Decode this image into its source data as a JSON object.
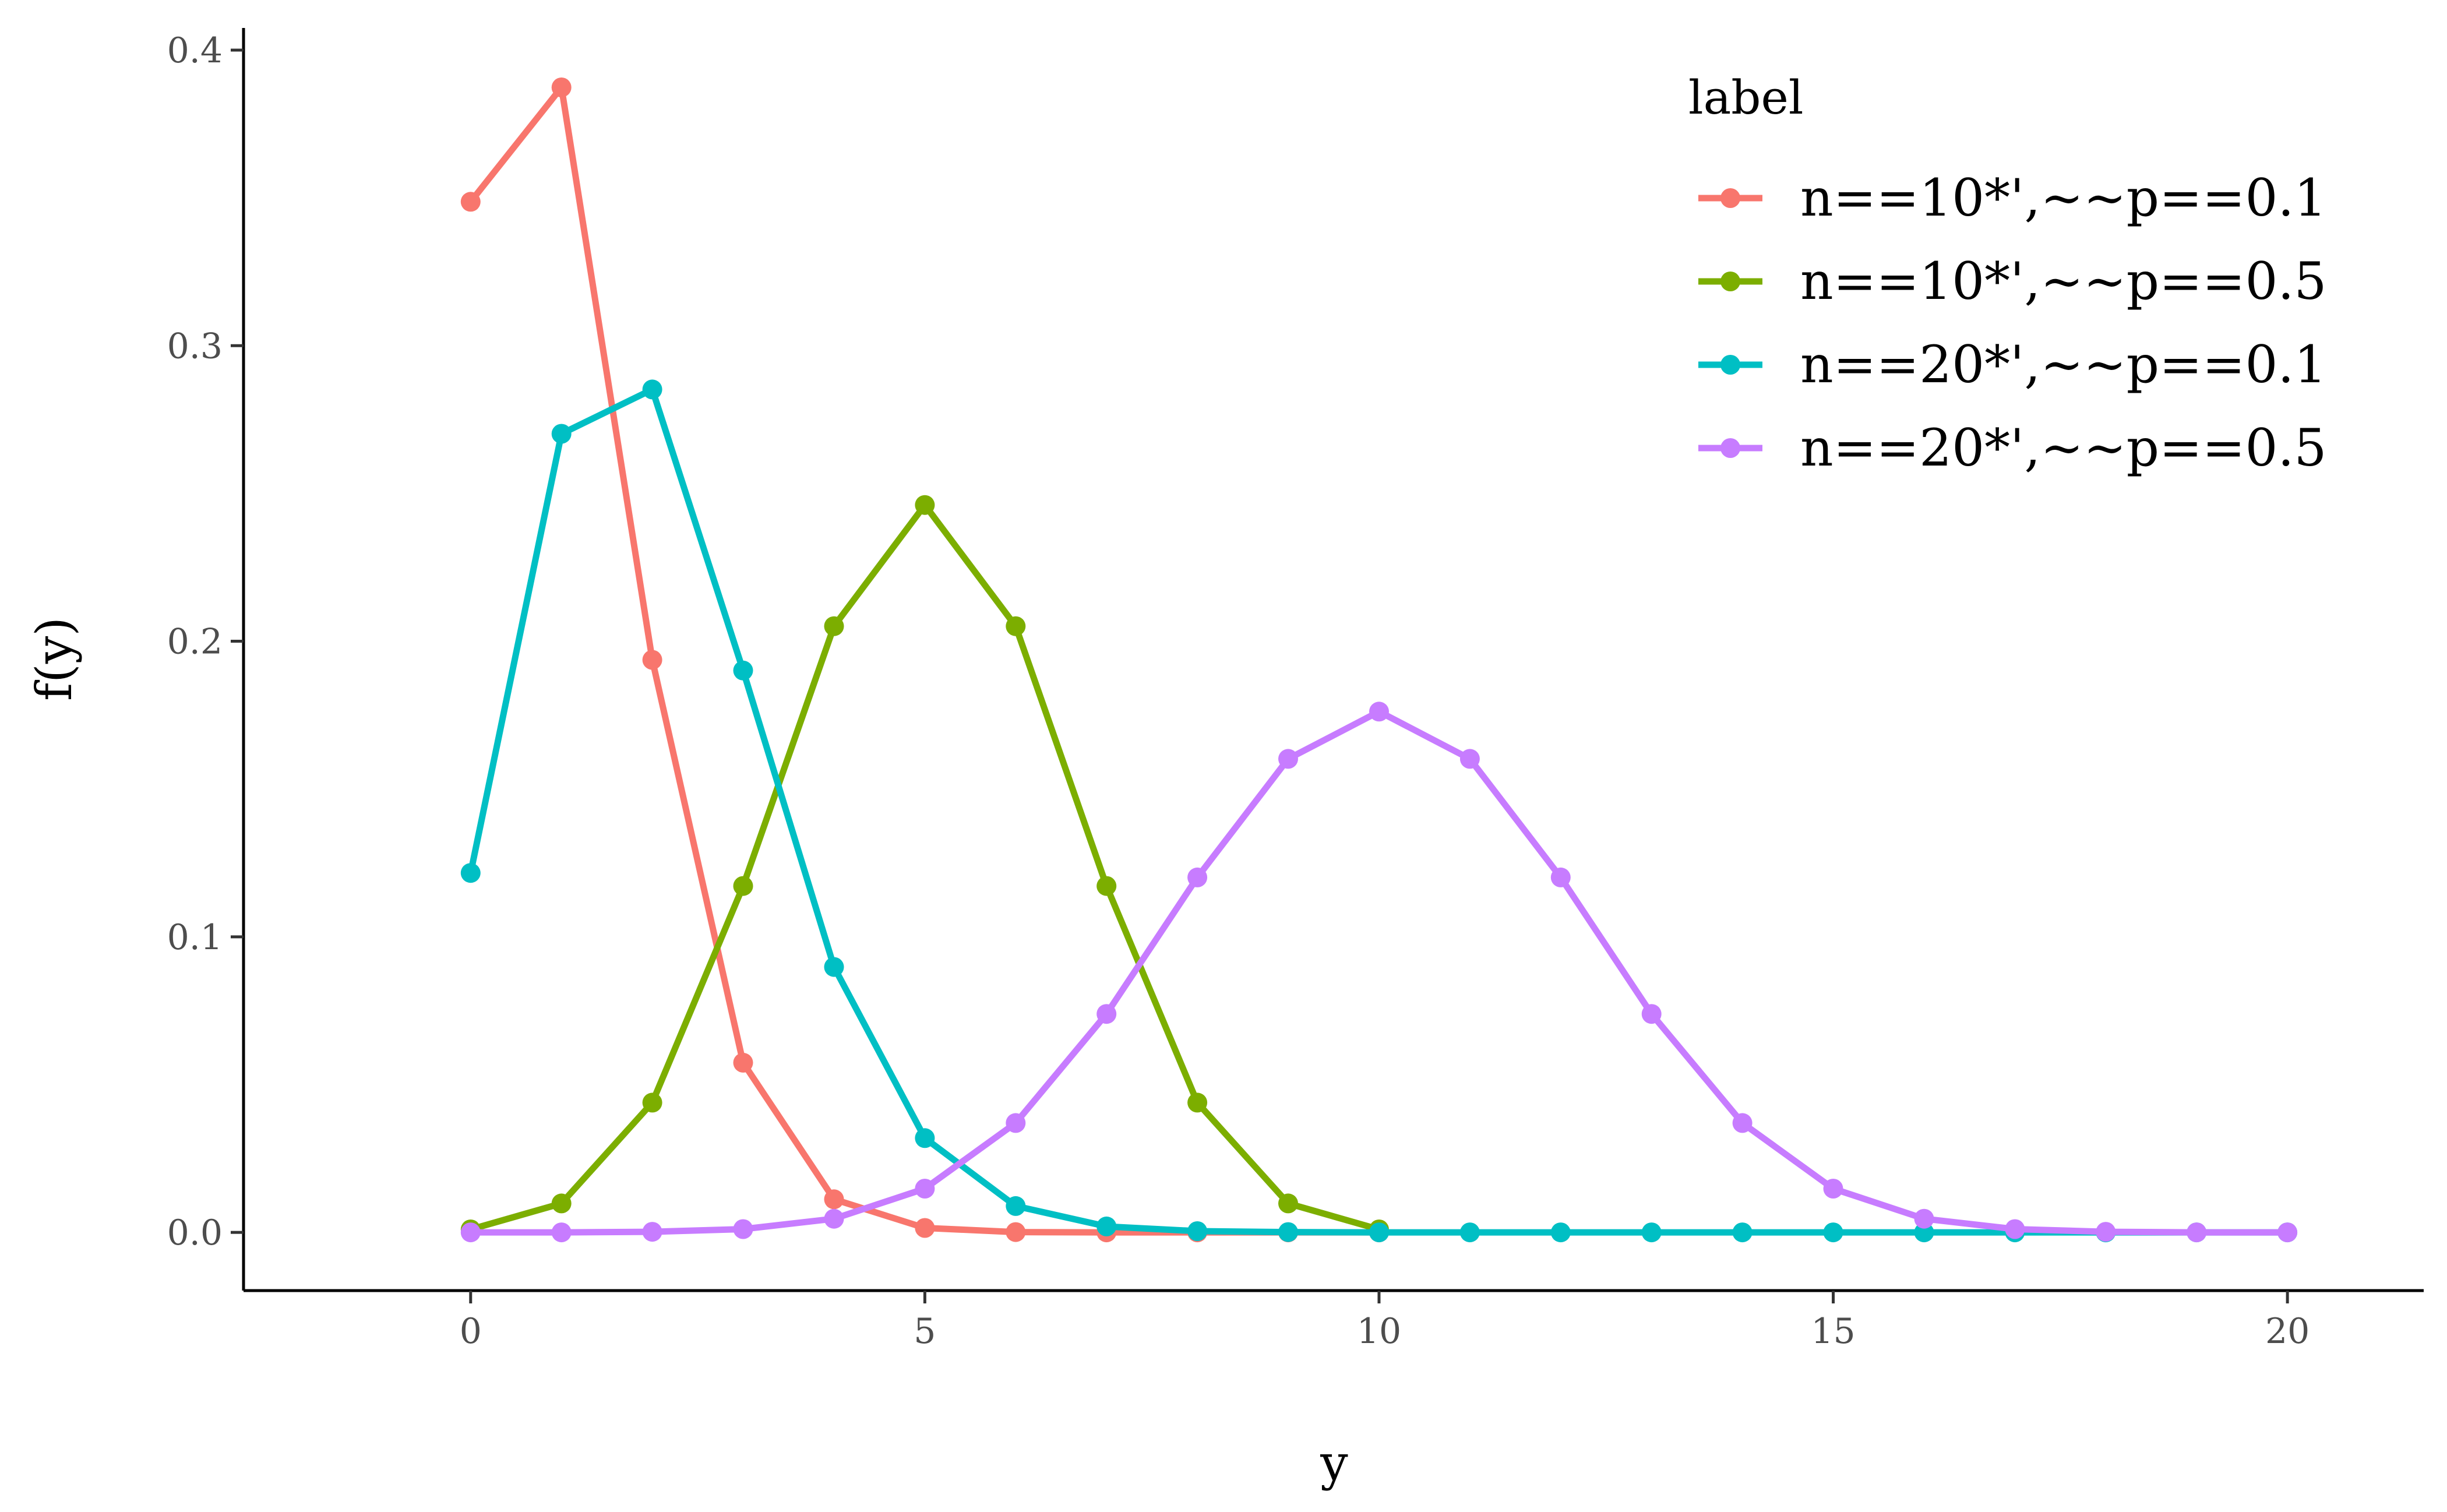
{
  "chart_data": {
    "type": "line",
    "xlabel": "y",
    "ylabel": "f(y)",
    "xlim": [
      -2.5,
      21.5
    ],
    "ylim": [
      -0.0197,
      0.4075
    ],
    "x_ticks": [
      0,
      5,
      10,
      15,
      20
    ],
    "x_tick_labels": [
      "0",
      "5",
      "10",
      "15",
      "20"
    ],
    "y_ticks": [
      0,
      0.1,
      0.2,
      0.3,
      0.4
    ],
    "y_tick_labels": [
      "0.0",
      "0.1",
      "0.2",
      "0.3",
      "0.4"
    ],
    "grid": false,
    "legend": {
      "title": "label",
      "position": "top-right"
    },
    "series": [
      {
        "name": "n==10*',~~p==0.1",
        "color": "#F8766D",
        "x": [
          0,
          1,
          2,
          3,
          4,
          5,
          6,
          7,
          8,
          9,
          10
        ],
        "values": [
          0.3487,
          0.3874,
          0.1937,
          0.0574,
          0.0112,
          0.0015,
          0.0001,
          0.0,
          0.0,
          0.0,
          0.0
        ]
      },
      {
        "name": "n==10*',~~p==0.5",
        "color": "#7CAE00",
        "x": [
          0,
          1,
          2,
          3,
          4,
          5,
          6,
          7,
          8,
          9,
          10
        ],
        "values": [
          0.001,
          0.0098,
          0.0439,
          0.1172,
          0.2051,
          0.2461,
          0.2051,
          0.1172,
          0.0439,
          0.0098,
          0.001
        ]
      },
      {
        "name": "n==20*',~~p==0.1",
        "color": "#00BFC4",
        "x": [
          0,
          1,
          2,
          3,
          4,
          5,
          6,
          7,
          8,
          9,
          10,
          11,
          12,
          13,
          14,
          15,
          16,
          17,
          18,
          19,
          20
        ],
        "values": [
          0.1216,
          0.2702,
          0.2852,
          0.1901,
          0.0898,
          0.0319,
          0.0089,
          0.002,
          0.0004,
          0.0001,
          0.0,
          0.0,
          0.0,
          0.0,
          0.0,
          0.0,
          0.0,
          0.0,
          0.0,
          0.0,
          0.0
        ]
      },
      {
        "name": "n==20*',~~p==0.5",
        "color": "#C77CFF",
        "x": [
          0,
          1,
          2,
          3,
          4,
          5,
          6,
          7,
          8,
          9,
          10,
          11,
          12,
          13,
          14,
          15,
          16,
          17,
          18,
          19,
          20
        ],
        "values": [
          0.0,
          0.0,
          0.0002,
          0.0011,
          0.0046,
          0.0148,
          0.037,
          0.0739,
          0.1201,
          0.1602,
          0.1762,
          0.1602,
          0.1201,
          0.0739,
          0.037,
          0.0148,
          0.0046,
          0.0011,
          0.0002,
          0.0,
          0.0
        ]
      }
    ]
  }
}
